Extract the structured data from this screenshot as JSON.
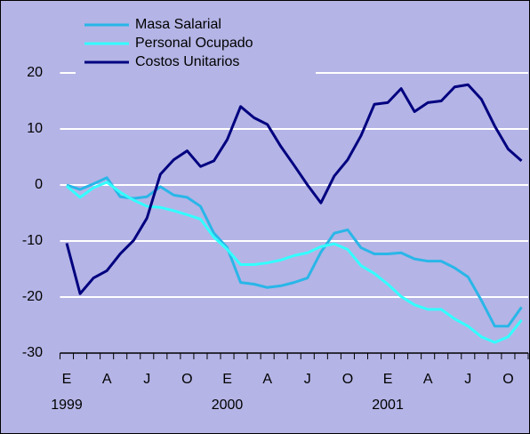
{
  "chart_data": {
    "type": "line",
    "categories": [
      "E",
      null,
      null,
      "A",
      null,
      null,
      "J",
      null,
      null,
      "O",
      null,
      null,
      "E",
      null,
      null,
      "A",
      null,
      null,
      "J",
      null,
      null,
      "O",
      null,
      null,
      "E",
      null,
      null,
      "A",
      null,
      null,
      "J",
      null,
      null,
      "O",
      null
    ],
    "years": [
      "1999",
      null,
      null,
      null,
      null,
      null,
      null,
      null,
      null,
      null,
      null,
      null,
      "2000",
      null,
      null,
      null,
      null,
      null,
      null,
      null,
      null,
      null,
      null,
      null,
      "2001",
      null,
      null,
      null,
      null,
      null,
      null,
      null,
      null,
      null,
      null
    ],
    "series": [
      {
        "name": "Masa Salarial",
        "color": "#29b6e8",
        "values": [
          0,
          -0.8,
          0.2,
          1.3,
          -2.1,
          -2.4,
          -2.1,
          -0.3,
          -1.8,
          -2.2,
          -3.8,
          -8.6,
          -11.2,
          -17.4,
          -17.7,
          -18.3,
          -18.0,
          -17.4,
          -16.6,
          -12.0,
          -8.6,
          -8.0,
          -11.2,
          -12.3,
          -12.3,
          -12.1,
          -13.2,
          -13.6,
          -13.6,
          -14.8,
          -16.4,
          -20.6,
          -25.2,
          -25.2,
          -21.8
        ]
      },
      {
        "name": "Personal Ocupado",
        "color": "#33ffff",
        "values": [
          -0.2,
          -2.2,
          -0.5,
          0.5,
          -1.3,
          -2.7,
          -3.8,
          -4.0,
          -4.6,
          -5.3,
          -6.1,
          -9.3,
          -11.5,
          -14.2,
          -14.2,
          -13.9,
          -13.4,
          -12.6,
          -12.1,
          -11.0,
          -10.5,
          -11.5,
          -14.4,
          -15.8,
          -17.7,
          -19.9,
          -21.4,
          -22.2,
          -22.2,
          -23.9,
          -25.2,
          -27.1,
          -28.1,
          -27.1,
          -24.1
        ]
      },
      {
        "name": "Costos Unitarios",
        "color": "#000080",
        "values": [
          -10.4,
          -19.4,
          -16.6,
          -15.3,
          -12.3,
          -9.9,
          -5.9,
          1.9,
          4.5,
          6.1,
          3.3,
          4.3,
          8.1,
          14.0,
          12.0,
          10.8,
          6.9,
          3.5,
          0,
          -3.2,
          1.6,
          4.5,
          8.8,
          14.4,
          14.7,
          17.2,
          13.1,
          14.7,
          15.0,
          17.5,
          17.9,
          15.3,
          10.5,
          6.4,
          4.3
        ]
      }
    ],
    "ylim": [
      -30,
      20
    ],
    "yticks": [
      -30,
      -20,
      -10,
      0,
      10,
      20
    ],
    "grid": true
  }
}
